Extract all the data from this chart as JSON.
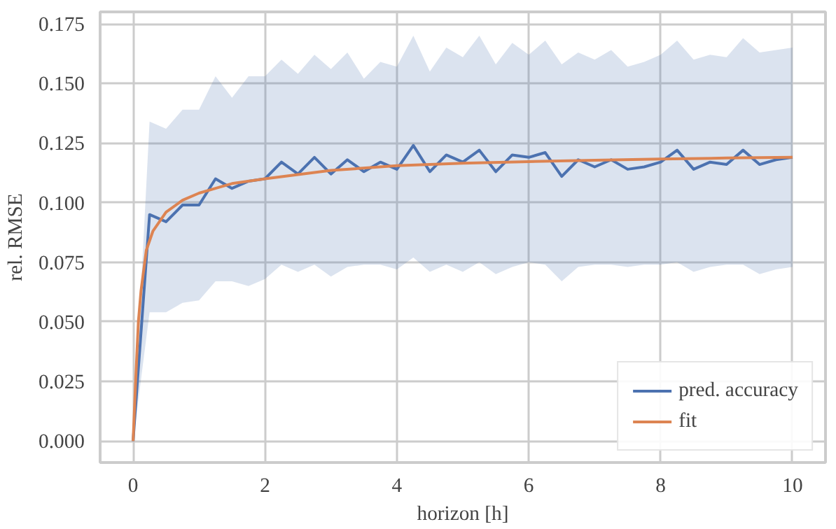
{
  "chart_data": {
    "type": "line",
    "xlabel": "horizon [h]",
    "ylabel": "rel. RMSE",
    "xlim": [
      -0.5,
      10.5
    ],
    "ylim": [
      -0.009,
      0.18
    ],
    "xticks": [
      0,
      2,
      4,
      6,
      8,
      10
    ],
    "yticks": [
      {
        "value": 0,
        "label": "0.000"
      },
      {
        "value": 0.025,
        "label": "0.025"
      },
      {
        "value": 0.05,
        "label": "0.050"
      },
      {
        "value": 0.075,
        "label": "0.075"
      },
      {
        "value": 0.1,
        "label": "0.100"
      },
      {
        "value": 0.125,
        "label": "0.125"
      },
      {
        "value": 0.15,
        "label": "0.150"
      },
      {
        "value": 0.175,
        "label": "0.175"
      }
    ],
    "grid": true,
    "legend": "bottom right",
    "line_style": "solid",
    "series": [
      {
        "name": "pred. accuracy",
        "color": "#4c72b0",
        "x": [
          0,
          0.25,
          0.5,
          0.75,
          1.0,
          1.25,
          1.5,
          1.75,
          2.0,
          2.25,
          2.5,
          2.75,
          3.0,
          3.25,
          3.5,
          3.75,
          4.0,
          4.25,
          4.5,
          4.75,
          5.0,
          5.25,
          5.5,
          5.75,
          6.0,
          6.25,
          6.5,
          6.75,
          7.0,
          7.25,
          7.5,
          7.75,
          8.0,
          8.25,
          8.5,
          8.75,
          9.0,
          9.25,
          9.5,
          9.75,
          10.0
        ],
        "values": [
          0,
          0.095,
          0.092,
          0.099,
          0.099,
          0.11,
          0.106,
          0.109,
          0.11,
          0.117,
          0.112,
          0.119,
          0.112,
          0.118,
          0.113,
          0.117,
          0.114,
          0.124,
          0.113,
          0.12,
          0.117,
          0.122,
          0.113,
          0.12,
          0.119,
          0.121,
          0.111,
          0.118,
          0.115,
          0.118,
          0.114,
          0.115,
          0.117,
          0.122,
          0.114,
          0.117,
          0.116,
          0.122,
          0.116,
          0.118,
          0.119
        ],
        "lower": [
          0,
          0.054,
          0.054,
          0.058,
          0.059,
          0.067,
          0.067,
          0.065,
          0.068,
          0.074,
          0.071,
          0.074,
          0.069,
          0.073,
          0.074,
          0.074,
          0.072,
          0.077,
          0.071,
          0.074,
          0.071,
          0.075,
          0.07,
          0.073,
          0.075,
          0.074,
          0.067,
          0.073,
          0.074,
          0.074,
          0.073,
          0.074,
          0.074,
          0.075,
          0.071,
          0.073,
          0.074,
          0.074,
          0.07,
          0.072,
          0.073
        ],
        "upper": [
          0,
          0.134,
          0.131,
          0.139,
          0.139,
          0.153,
          0.144,
          0.153,
          0.153,
          0.16,
          0.154,
          0.162,
          0.156,
          0.163,
          0.152,
          0.159,
          0.157,
          0.17,
          0.155,
          0.165,
          0.161,
          0.17,
          0.158,
          0.167,
          0.162,
          0.168,
          0.158,
          0.163,
          0.16,
          0.164,
          0.157,
          0.159,
          0.162,
          0.168,
          0.16,
          0.162,
          0.161,
          0.169,
          0.163,
          0.164,
          0.165
        ]
      },
      {
        "name": "fit",
        "color": "#dd8452",
        "x": [
          0,
          0.04,
          0.08,
          0.12,
          0.2,
          0.3,
          0.5,
          0.75,
          1,
          1.25,
          1.5,
          2,
          3,
          4,
          5,
          6,
          7,
          8,
          9,
          10
        ],
        "values": [
          0,
          0.026,
          0.05,
          0.063,
          0.08,
          0.088,
          0.096,
          0.101,
          0.104,
          0.106,
          0.108,
          0.11,
          0.1135,
          0.1155,
          0.1165,
          0.1172,
          0.1178,
          0.1183,
          0.1187,
          0.119
        ]
      }
    ]
  }
}
